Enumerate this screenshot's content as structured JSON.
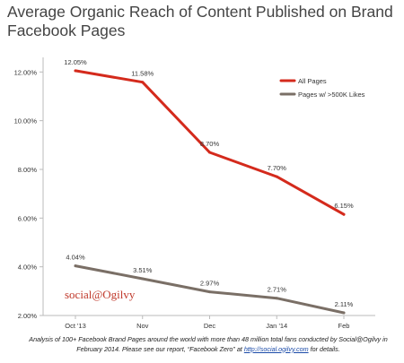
{
  "title": "Average Organic Reach of Content Published on Brand Facebook Pages",
  "watermark": "social@Ogilvy",
  "footnote": {
    "before": "Analysis of 100+ Facebook Brand Pages around the world with more than 48 million total fans conducted by Social@Ogilvy in February 2014. Please see our report, “Facebook Zero” at ",
    "link": "http://social.ogilvy.com",
    "after": " for details."
  },
  "colors": {
    "all_pages": "#d42a1c",
    "large_pages": "#7a6f66",
    "axis": "#bbbbbb"
  },
  "chart_data": {
    "type": "line",
    "title": "Average Organic Reach of Content Published on Brand Facebook Pages",
    "categories": [
      "Oct '13",
      "Nov",
      "Dec",
      "Jan '14",
      "Feb"
    ],
    "y_ticks": [
      "2.00%",
      "4.00%",
      "6.00%",
      "8.00%",
      "10.00%",
      "12.00%"
    ],
    "ylim": [
      2,
      12.6
    ],
    "grid": false,
    "legend_position": "top-right",
    "series": [
      {
        "name": "All Pages",
        "values": [
          12.05,
          11.58,
          8.7,
          7.7,
          6.15
        ],
        "labels": [
          "12.05%",
          "11.58%",
          "8.70%",
          "7.70%",
          "6.15%"
        ]
      },
      {
        "name": "Pages w/ >500K Likes",
        "values": [
          4.04,
          3.51,
          2.97,
          2.71,
          2.11
        ],
        "labels": [
          "4.04%",
          "3.51%",
          "2.97%",
          "2.71%",
          "2.11%"
        ]
      }
    ]
  }
}
